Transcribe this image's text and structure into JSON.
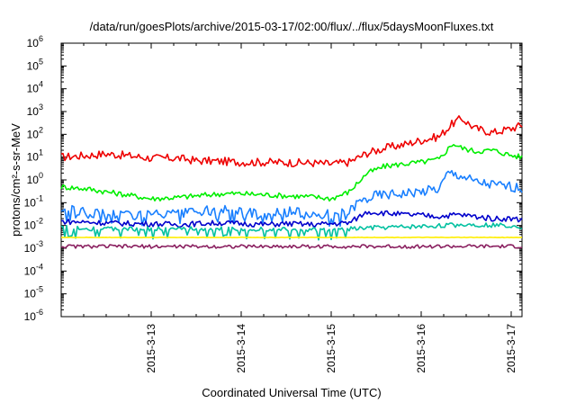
{
  "chart_data": {
    "type": "line",
    "title": "/data/run/goesPlots/archive/2015-03-17/02:00/flux/../flux/5daysMoonFluxes.txt",
    "xlabel": "Coordinated Universal Time (UTC)",
    "ylabel": "protons/cm²-s-sr-MeV",
    "yscale": "log",
    "ylim": [
      1e-06,
      1000000.0
    ],
    "xlim_days": [
      0,
      5.12
    ],
    "y_ticks": [
      {
        "base": "10",
        "exp": "-6"
      },
      {
        "base": "10",
        "exp": "-5"
      },
      {
        "base": "10",
        "exp": "-4"
      },
      {
        "base": "10",
        "exp": "-3"
      },
      {
        "base": "10",
        "exp": "-2"
      },
      {
        "base": "10",
        "exp": "-1"
      },
      {
        "base": "10",
        "exp": "0"
      },
      {
        "base": "10",
        "exp": "1"
      },
      {
        "base": "10",
        "exp": "2"
      },
      {
        "base": "10",
        "exp": "3"
      },
      {
        "base": "10",
        "exp": "4"
      },
      {
        "base": "10",
        "exp": "5"
      },
      {
        "base": "10",
        "exp": "6"
      }
    ],
    "x_ticks": [
      {
        "label": "2015-3-13",
        "day": 1.0
      },
      {
        "label": "2015-3-14",
        "day": 2.0
      },
      {
        "label": "2015-3-15",
        "day": 3.0
      },
      {
        "label": "2015-3-16",
        "day": 4.0
      },
      {
        "label": "2015-3-17",
        "day": 5.0
      }
    ],
    "grid": false,
    "series": [
      {
        "color": "#ee0000",
        "x": [
          0.0,
          0.3,
          0.5,
          0.8,
          1.0,
          1.3,
          1.5,
          1.8,
          2.0,
          2.3,
          2.5,
          2.8,
          3.0,
          3.2,
          3.4,
          3.6,
          3.8,
          4.0,
          4.2,
          4.35,
          4.45,
          4.6,
          4.8,
          5.0,
          5.12
        ],
        "y": [
          10,
          12,
          14,
          11,
          9,
          9,
          7,
          6.5,
          6,
          6,
          5.8,
          5.5,
          5,
          6,
          15,
          25,
          35,
          55,
          80,
          300,
          500,
          180,
          120,
          180,
          250
        ]
      },
      {
        "color": "#00ee00",
        "x": [
          0.0,
          0.3,
          0.5,
          0.8,
          1.0,
          1.3,
          1.5,
          1.8,
          2.0,
          2.3,
          2.5,
          2.8,
          3.0,
          3.2,
          3.4,
          3.6,
          3.8,
          4.0,
          4.2,
          4.35,
          4.45,
          4.6,
          4.8,
          5.0,
          5.12
        ],
        "y": [
          0.5,
          0.4,
          0.3,
          0.2,
          0.15,
          0.17,
          0.2,
          0.25,
          0.25,
          0.22,
          0.2,
          0.18,
          0.15,
          0.3,
          2,
          4,
          5,
          6,
          8,
          40,
          25,
          18,
          20,
          12,
          10
        ]
      },
      {
        "color": "#1a80ff",
        "x": [
          0.0,
          0.3,
          0.5,
          0.8,
          1.0,
          1.3,
          1.5,
          1.8,
          2.0,
          2.3,
          2.5,
          2.8,
          3.0,
          3.2,
          3.3,
          3.5,
          3.8,
          4.0,
          4.2,
          4.3,
          4.45,
          4.6,
          4.8,
          5.0,
          5.12
        ],
        "y": [
          0.05,
          0.04,
          0.035,
          0.03,
          0.03,
          0.03,
          0.04,
          0.05,
          0.04,
          0.035,
          0.04,
          0.035,
          0.03,
          0.04,
          0.1,
          0.2,
          0.25,
          0.3,
          0.4,
          2,
          1.5,
          0.8,
          0.6,
          0.5,
          0.45
        ]
      },
      {
        "color": "#0000cc",
        "x": [
          0.0,
          0.3,
          0.5,
          0.8,
          1.0,
          1.3,
          1.5,
          1.8,
          2.0,
          2.3,
          2.5,
          2.8,
          3.0,
          3.2,
          3.4,
          3.6,
          3.8,
          4.0,
          4.2,
          4.4,
          4.6,
          4.8,
          5.0,
          5.12
        ],
        "y": [
          0.015,
          0.014,
          0.013,
          0.012,
          0.012,
          0.011,
          0.012,
          0.013,
          0.012,
          0.011,
          0.012,
          0.011,
          0.012,
          0.013,
          0.04,
          0.035,
          0.03,
          0.028,
          0.025,
          0.03,
          0.025,
          0.02,
          0.02,
          0.018
        ]
      },
      {
        "color": "#00c0a0",
        "x": [
          0.0,
          0.5,
          1.0,
          1.5,
          2.0,
          2.5,
          3.0,
          3.2,
          3.5,
          4.0,
          4.5,
          5.0,
          5.12
        ],
        "y": [
          0.008,
          0.007,
          0.007,
          0.007,
          0.007,
          0.007,
          0.006,
          0.007,
          0.008,
          0.009,
          0.011,
          0.01,
          0.009
        ]
      },
      {
        "color": "#ffee00",
        "x": [
          0.0,
          1.0,
          2.0,
          3.0,
          4.0,
          5.0,
          5.12
        ],
        "y": [
          0.003,
          0.003,
          0.003,
          0.003,
          0.003,
          0.003,
          0.003
        ]
      },
      {
        "color": "#8a2060",
        "x": [
          0.0,
          0.5,
          1.0,
          1.5,
          2.0,
          2.5,
          3.0,
          3.5,
          4.0,
          4.5,
          5.0,
          5.12
        ],
        "y": [
          0.0012,
          0.0012,
          0.0012,
          0.0012,
          0.0012,
          0.0012,
          0.0012,
          0.0012,
          0.0012,
          0.0012,
          0.0012,
          0.0012
        ]
      }
    ]
  }
}
